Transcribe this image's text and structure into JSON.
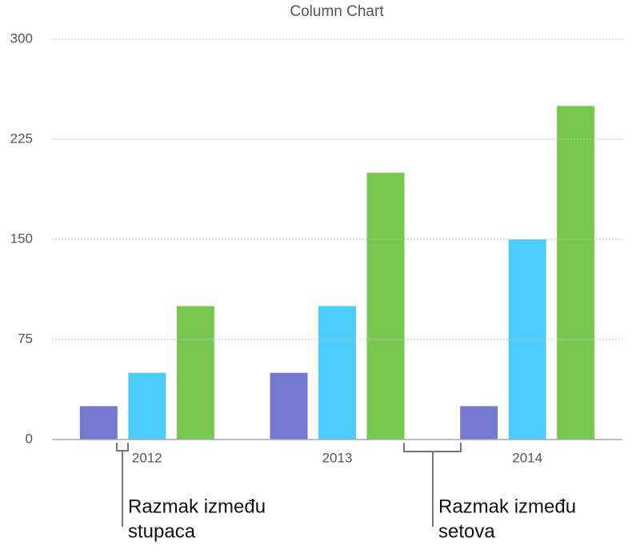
{
  "chart_data": {
    "type": "bar",
    "title": "Column Chart",
    "categories": [
      "2012",
      "2013",
      "2014"
    ],
    "series": [
      {
        "color": "#7479cf",
        "values": [
          25,
          50,
          25
        ]
      },
      {
        "color": "#4dcdfc",
        "values": [
          50,
          100,
          150
        ]
      },
      {
        "color": "#78c850",
        "values": [
          100,
          200,
          250
        ]
      }
    ],
    "ylim": [
      0,
      300
    ],
    "yticks": [
      0,
      75,
      150,
      225,
      300
    ],
    "grid": true,
    "annotations": [
      [
        "Razmak između",
        "stupaca"
      ],
      [
        "Razmak između",
        "setova"
      ]
    ]
  }
}
